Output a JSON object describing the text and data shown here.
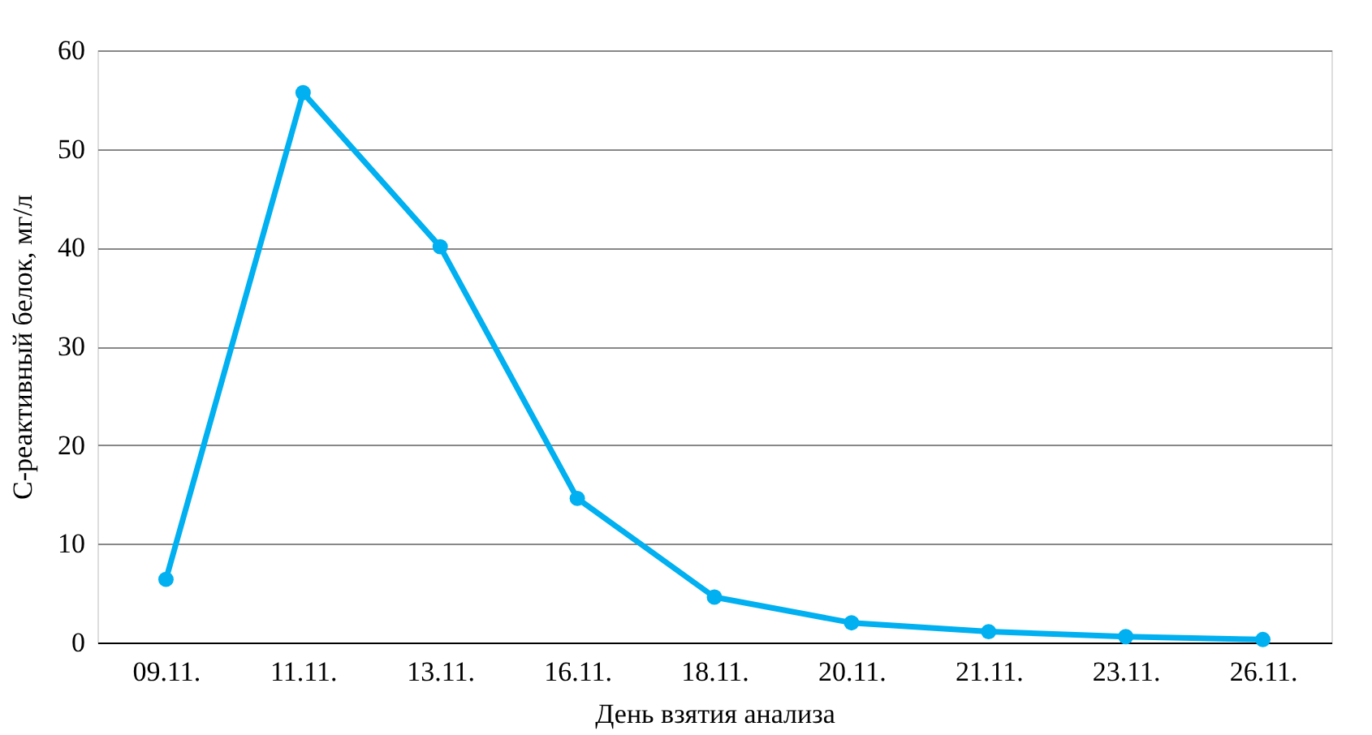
{
  "chart_data": {
    "type": "line",
    "xlabel": "День взятия анализа",
    "ylabel": "С-реактивный белок, мг/л",
    "categories": [
      "09.11.",
      "11.11.",
      "13.11.",
      "16.11.",
      "18.11.",
      "20.11.",
      "21.11.",
      "23.11.",
      "26.11."
    ],
    "series": [
      {
        "color": "#00b0f0",
        "values": [
          6.4,
          55.7,
          40.1,
          14.6,
          4.6,
          2.0,
          1.1,
          0.6,
          0.3
        ]
      }
    ],
    "ylim": [
      0,
      60
    ],
    "yticks": [
      0,
      10,
      20,
      30,
      40,
      50,
      60
    ],
    "grid": "y",
    "marker": "circle",
    "line_style": "solid"
  }
}
